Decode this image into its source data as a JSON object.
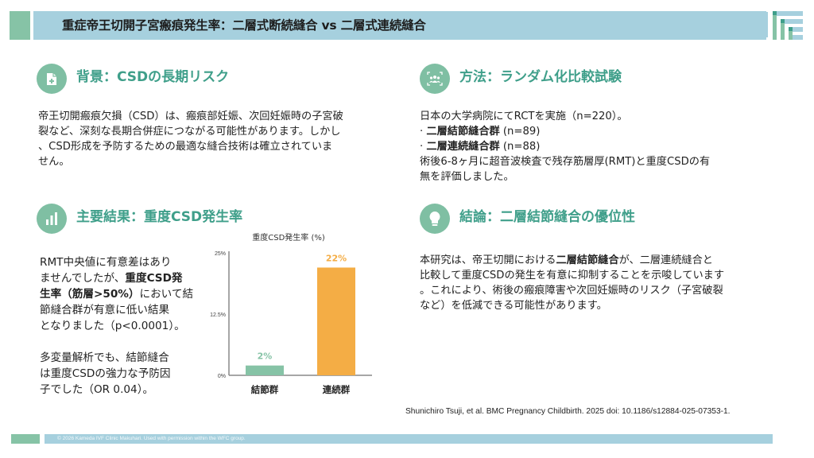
{
  "header": {
    "title": "重症帝王切開子宮瘢痕発生率：二層式断続縫合 vs 二層式連続縫合"
  },
  "colors": {
    "accent_green": "#7fbfa3",
    "header_blue": "#a6d0de",
    "heading_teal": "#3f9f8a",
    "bar_green": "#86c3a6",
    "bar_orange": "#f4ad45"
  },
  "sections": {
    "background": {
      "icon": "medical-clipboard-icon",
      "title": "背景：CSDの長期リスク",
      "lines": [
        "帝王切開瘢痕欠損（CSD）は、瘢痕部妊娠、次回妊娠時の子宮破",
        "裂など、深刻な長期合併症につながる可能性があります。しかし",
        "、CSD形成を予防するための最適な縫合技術は確立されていま",
        "せん。"
      ]
    },
    "methods": {
      "icon": "group-scan-icon",
      "title": "方法：ランダム化比較試験",
      "line1": "日本の大学病院にてRCTを実施（n=220）。",
      "group1_bullet": "· ",
      "group1_name": "二層結節縫合群",
      "group1_n": " (n=89)",
      "group2_bullet": "· ",
      "group2_name": "二層連続縫合群",
      "group2_n": " (n=88)",
      "line4": "術後6-8ヶ月に超音波検査で残存筋層厚(RMT)と重度CSDの有",
      "line5": "無を評価しました。"
    },
    "results": {
      "icon": "bar-chart-icon",
      "title": "主要結果：重度CSD発生率",
      "p1_line1": "RMT中央値に有意差はあり",
      "p1_line2a": "ませんでしたが、",
      "p1_line2b": "重度CSD発",
      "p1_line3a": "生率（筋層>50%）",
      "p1_line3b": "において結",
      "p1_line4": "節縫合群が有意に低い結果",
      "p1_line5": "となりました（p<0.0001）。",
      "p2_line1": "多変量解析でも、結節縫合",
      "p2_line2": "は重度CSDの強力な予防因",
      "p2_line3": "子でした（OR 0.04）。"
    },
    "conclusion": {
      "icon": "lightbulb-icon",
      "title": "結論：二層結節縫合の優位性",
      "l1a": "本研究は、帝王切開における",
      "l1b": "二層結節縫合",
      "l1c": "が、二層連続縫合と",
      "l2": "比較して重度CSDの発生を有意に抑制することを示唆しています",
      "l3": "。これにより、術後の瘢痕障害や次回妊娠時のリスク（子宮破裂",
      "l4": "など）を低減できる可能性があります。"
    }
  },
  "chart_data": {
    "type": "bar",
    "title": "重度CSD発生率 (%)",
    "categories": [
      "結節群",
      "連続群"
    ],
    "values": [
      2,
      22
    ],
    "data_labels": [
      "2%",
      "22%"
    ],
    "bar_colors": [
      "#86c3a6",
      "#f4ad45"
    ],
    "label_colors": [
      "#86c3a6",
      "#f4ad45"
    ],
    "ylim": [
      0,
      25
    ],
    "yticks": [
      0,
      12.5,
      25
    ],
    "ytick_labels": [
      "0%",
      "12.5%",
      "25%"
    ],
    "xlabel": "",
    "ylabel": "",
    "grid": false,
    "legend": "none"
  },
  "citation": "Shunichiro Tsuji, et al. BMC Pregnancy Childbirth. 2025 doi: 10.1186/s12884-025-07353-1.",
  "footer": {
    "copyright": "© 2026 Kameda IVF Clinic Makuhari. Used with permission within the WFC group."
  }
}
